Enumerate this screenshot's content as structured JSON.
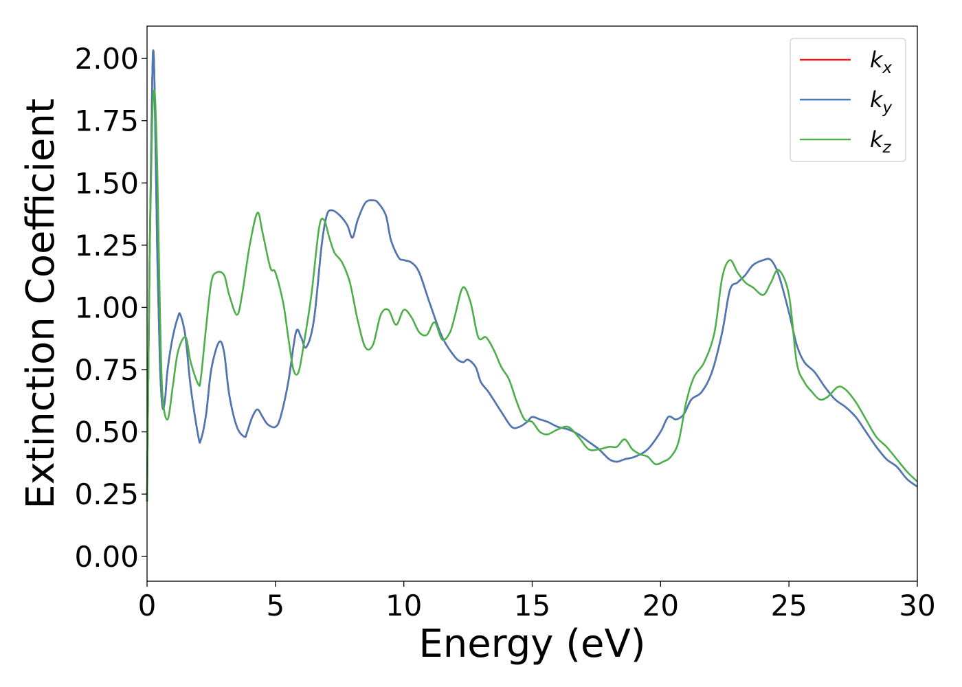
{
  "chart_data": {
    "type": "line",
    "title": "",
    "xlabel": "Energy (eV)",
    "ylabel": "Extinction Coefficient",
    "xlim": [
      0,
      30
    ],
    "ylim": [
      -0.1,
      2.13
    ],
    "xticks": [
      0,
      5,
      10,
      15,
      20,
      25,
      30
    ],
    "xtick_labels": [
      "0",
      "5",
      "10",
      "15",
      "20",
      "25",
      "30"
    ],
    "yticks": [
      0.0,
      0.25,
      0.5,
      0.75,
      1.0,
      1.25,
      1.5,
      1.75,
      2.0
    ],
    "ytick_labels": [
      "0.00",
      "0.25",
      "0.50",
      "0.75",
      "1.00",
      "1.25",
      "1.50",
      "1.75",
      "2.00"
    ],
    "grid": false,
    "legend_position": "top-right",
    "series": [
      {
        "name": "k",
        "subscript": "x",
        "color": "#e41a1c",
        "x": [
          0,
          0.1,
          0.2,
          0.25,
          0.3,
          0.4,
          0.5,
          0.6,
          0.7,
          0.8,
          1.0,
          1.2,
          1.3,
          1.5,
          1.7,
          2.0,
          2.1,
          2.3,
          2.5,
          2.8,
          3.0,
          3.2,
          3.5,
          3.8,
          3.9,
          4.1,
          4.3,
          4.5,
          4.7,
          5.0,
          5.2,
          5.5,
          5.8,
          6.0,
          6.2,
          6.5,
          6.8,
          7.0,
          7.2,
          7.5,
          7.8,
          8.0,
          8.2,
          8.5,
          8.8,
          9.0,
          9.3,
          9.5,
          9.8,
          10.0,
          10.3,
          10.6,
          11.0,
          11.5,
          12.0,
          12.3,
          12.5,
          12.8,
          13.0,
          13.3,
          13.8,
          14.2,
          14.5,
          14.8,
          15.0,
          15.3,
          15.6,
          16.0,
          16.4,
          16.8,
          17.2,
          17.6,
          18.0,
          18.3,
          18.6,
          19.0,
          19.5,
          20.0,
          20.3,
          20.6,
          20.9,
          21.2,
          21.6,
          22.0,
          22.4,
          22.7,
          23.0,
          23.3,
          23.6,
          24.0,
          24.3,
          24.6,
          25.0,
          25.3,
          25.6,
          26.0,
          26.4,
          26.8,
          27.2,
          27.6,
          28.0,
          28.4,
          28.8,
          29.2,
          29.6,
          30.0
        ],
        "y": [
          0.22,
          1.2,
          1.9,
          2.03,
          1.85,
          1.2,
          0.78,
          0.6,
          0.63,
          0.75,
          0.88,
          0.96,
          0.97,
          0.88,
          0.68,
          0.48,
          0.47,
          0.57,
          0.75,
          0.86,
          0.82,
          0.65,
          0.52,
          0.48,
          0.5,
          0.56,
          0.59,
          0.56,
          0.53,
          0.52,
          0.56,
          0.7,
          0.9,
          0.88,
          0.84,
          0.95,
          1.25,
          1.37,
          1.39,
          1.37,
          1.33,
          1.28,
          1.35,
          1.42,
          1.43,
          1.42,
          1.37,
          1.27,
          1.2,
          1.19,
          1.18,
          1.14,
          1.02,
          0.88,
          0.8,
          0.78,
          0.79,
          0.76,
          0.7,
          0.66,
          0.58,
          0.52,
          0.52,
          0.54,
          0.56,
          0.55,
          0.54,
          0.52,
          0.51,
          0.49,
          0.46,
          0.43,
          0.39,
          0.38,
          0.39,
          0.4,
          0.43,
          0.5,
          0.56,
          0.55,
          0.57,
          0.63,
          0.66,
          0.74,
          0.9,
          1.07,
          1.1,
          1.13,
          1.17,
          1.19,
          1.19,
          1.13,
          0.98,
          0.85,
          0.78,
          0.74,
          0.68,
          0.63,
          0.6,
          0.56,
          0.5,
          0.44,
          0.39,
          0.36,
          0.31,
          0.28
        ]
      },
      {
        "name": "k",
        "subscript": "y",
        "color": "#4a7ab5",
        "x": [
          0,
          0.1,
          0.2,
          0.25,
          0.3,
          0.4,
          0.5,
          0.6,
          0.7,
          0.8,
          1.0,
          1.2,
          1.3,
          1.5,
          1.7,
          2.0,
          2.1,
          2.3,
          2.5,
          2.8,
          3.0,
          3.2,
          3.5,
          3.8,
          3.9,
          4.1,
          4.3,
          4.5,
          4.7,
          5.0,
          5.2,
          5.5,
          5.8,
          6.0,
          6.2,
          6.5,
          6.8,
          7.0,
          7.2,
          7.5,
          7.8,
          8.0,
          8.2,
          8.5,
          8.8,
          9.0,
          9.3,
          9.5,
          9.8,
          10.0,
          10.3,
          10.6,
          11.0,
          11.5,
          12.0,
          12.3,
          12.5,
          12.8,
          13.0,
          13.3,
          13.8,
          14.2,
          14.5,
          14.8,
          15.0,
          15.3,
          15.6,
          16.0,
          16.4,
          16.8,
          17.2,
          17.6,
          18.0,
          18.3,
          18.6,
          19.0,
          19.5,
          20.0,
          20.3,
          20.6,
          20.9,
          21.2,
          21.6,
          22.0,
          22.4,
          22.7,
          23.0,
          23.3,
          23.6,
          24.0,
          24.3,
          24.6,
          25.0,
          25.3,
          25.6,
          26.0,
          26.4,
          26.8,
          27.2,
          27.6,
          28.0,
          28.4,
          28.8,
          29.2,
          29.6,
          30.0
        ],
        "y": [
          0.22,
          1.2,
          1.9,
          2.03,
          1.85,
          1.2,
          0.78,
          0.6,
          0.63,
          0.75,
          0.88,
          0.96,
          0.97,
          0.88,
          0.68,
          0.48,
          0.47,
          0.57,
          0.75,
          0.86,
          0.82,
          0.65,
          0.52,
          0.48,
          0.5,
          0.56,
          0.59,
          0.56,
          0.53,
          0.52,
          0.56,
          0.7,
          0.9,
          0.88,
          0.84,
          0.95,
          1.25,
          1.37,
          1.39,
          1.37,
          1.33,
          1.28,
          1.35,
          1.42,
          1.43,
          1.42,
          1.37,
          1.27,
          1.2,
          1.19,
          1.18,
          1.14,
          1.02,
          0.88,
          0.8,
          0.78,
          0.79,
          0.76,
          0.7,
          0.66,
          0.58,
          0.52,
          0.52,
          0.54,
          0.56,
          0.55,
          0.54,
          0.52,
          0.51,
          0.49,
          0.46,
          0.43,
          0.39,
          0.38,
          0.39,
          0.4,
          0.43,
          0.5,
          0.56,
          0.55,
          0.57,
          0.63,
          0.66,
          0.74,
          0.9,
          1.07,
          1.1,
          1.13,
          1.17,
          1.19,
          1.19,
          1.13,
          0.98,
          0.85,
          0.78,
          0.74,
          0.68,
          0.63,
          0.6,
          0.56,
          0.5,
          0.44,
          0.39,
          0.36,
          0.31,
          0.28
        ]
      },
      {
        "name": "k",
        "subscript": "z",
        "color": "#4daf4a",
        "x": [
          0,
          0.1,
          0.2,
          0.3,
          0.4,
          0.5,
          0.6,
          0.8,
          1.0,
          1.2,
          1.5,
          1.7,
          2.0,
          2.1,
          2.3,
          2.5,
          2.7,
          3.0,
          3.2,
          3.5,
          3.7,
          4.0,
          4.3,
          4.5,
          4.8,
          5.0,
          5.3,
          5.5,
          5.7,
          5.9,
          6.1,
          6.4,
          6.7,
          6.9,
          7.1,
          7.3,
          7.6,
          7.9,
          8.2,
          8.5,
          8.8,
          9.1,
          9.4,
          9.7,
          10.0,
          10.3,
          10.6,
          10.9,
          11.2,
          11.5,
          11.8,
          12.0,
          12.3,
          12.6,
          12.9,
          13.2,
          13.5,
          13.8,
          14.1,
          14.4,
          14.7,
          15.0,
          15.3,
          15.6,
          16.0,
          16.4,
          16.8,
          17.2,
          17.6,
          18.0,
          18.3,
          18.6,
          18.9,
          19.2,
          19.5,
          19.8,
          20.1,
          20.4,
          20.7,
          21.0,
          21.3,
          21.7,
          22.1,
          22.4,
          22.7,
          23.0,
          23.3,
          23.6,
          24.0,
          24.3,
          24.6,
          25.0,
          25.3,
          25.6,
          25.9,
          26.2,
          26.5,
          26.9,
          27.2,
          27.6,
          28.0,
          28.4,
          28.8,
          29.2,
          29.6,
          30.0
        ],
        "y": [
          0.22,
          1.2,
          1.75,
          1.86,
          1.55,
          1.0,
          0.65,
          0.55,
          0.68,
          0.82,
          0.88,
          0.78,
          0.69,
          0.72,
          0.92,
          1.1,
          1.14,
          1.13,
          1.05,
          0.97,
          1.05,
          1.25,
          1.38,
          1.3,
          1.16,
          1.14,
          1.02,
          0.88,
          0.75,
          0.74,
          0.85,
          1.05,
          1.32,
          1.35,
          1.28,
          1.22,
          1.18,
          1.1,
          0.95,
          0.84,
          0.85,
          0.97,
          0.99,
          0.93,
          0.99,
          0.96,
          0.9,
          0.89,
          0.94,
          0.87,
          0.9,
          0.97,
          1.08,
          1.02,
          0.88,
          0.88,
          0.83,
          0.76,
          0.71,
          0.62,
          0.55,
          0.54,
          0.5,
          0.49,
          0.51,
          0.52,
          0.48,
          0.43,
          0.43,
          0.44,
          0.44,
          0.47,
          0.43,
          0.41,
          0.4,
          0.37,
          0.38,
          0.4,
          0.46,
          0.62,
          0.72,
          0.78,
          0.9,
          1.12,
          1.19,
          1.14,
          1.1,
          1.08,
          1.05,
          1.1,
          1.15,
          1.05,
          0.78,
          0.7,
          0.66,
          0.63,
          0.64,
          0.68,
          0.67,
          0.62,
          0.55,
          0.48,
          0.44,
          0.39,
          0.34,
          0.3
        ]
      }
    ]
  }
}
